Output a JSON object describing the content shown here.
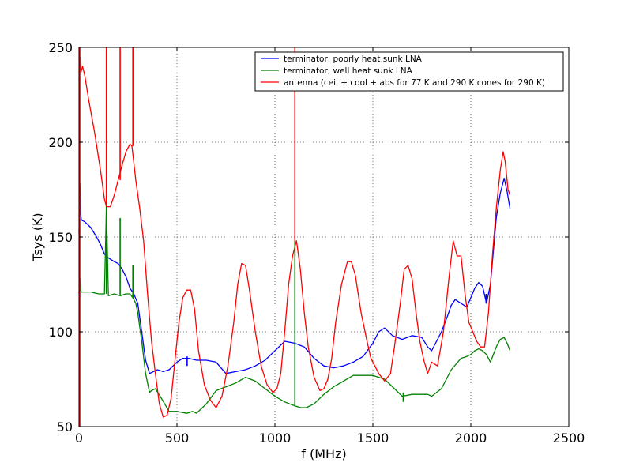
{
  "chart_data": {
    "type": "line",
    "xlabel": "f (MHz)",
    "ylabel": "Tsys (K)",
    "xlim": [
      0,
      2500
    ],
    "ylim": [
      50,
      250
    ],
    "xticks": [
      0,
      500,
      1000,
      1500,
      2000,
      2500
    ],
    "yticks": [
      50,
      100,
      150,
      200,
      250
    ],
    "grid": true,
    "legend_position": "top-right",
    "series": [
      {
        "name": "terminator, poorly heat sunk LNA",
        "color": "#0000ff",
        "x": [
          0,
          5,
          8,
          12,
          30,
          60,
          90,
          110,
          130,
          150,
          180,
          200,
          220,
          240,
          260,
          280,
          300,
          320,
          340,
          360,
          380,
          400,
          430,
          460,
          500,
          530,
          560,
          600,
          650,
          700,
          750,
          800,
          850,
          900,
          950,
          1000,
          1050,
          1100,
          1150,
          1200,
          1250,
          1300,
          1350,
          1400,
          1450,
          1500,
          1530,
          1560,
          1600,
          1650,
          1700,
          1750,
          1780,
          1800,
          1850,
          1880,
          1900,
          1920,
          1950,
          1980,
          2000,
          2020,
          2040,
          2060,
          2080,
          2100,
          2130,
          2150,
          2170,
          2185,
          2200
        ],
        "y": [
          152,
          178,
          162,
          159,
          158,
          155,
          150,
          146,
          141,
          139,
          137,
          136,
          133,
          129,
          123,
          120,
          115,
          100,
          85,
          78,
          79,
          80,
          79,
          80,
          84,
          86,
          86,
          85,
          85,
          84,
          78,
          79,
          80,
          82,
          85,
          90,
          95,
          94,
          92,
          86,
          82,
          81,
          82,
          84,
          87,
          94,
          100,
          102,
          98,
          96,
          98,
          97,
          92,
          90,
          100,
          108,
          114,
          117,
          115,
          113,
          118,
          123,
          126,
          124,
          115,
          125,
          160,
          173,
          181,
          174,
          165
        ]
      },
      {
        "name": "terminator, well heat sunk LNA",
        "color": "#008000",
        "x": [
          0,
          5,
          8,
          12,
          30,
          60,
          100,
          130,
          140,
          150,
          180,
          210,
          240,
          260,
          275,
          290,
          300,
          320,
          340,
          360,
          370,
          390,
          420,
          460,
          500,
          550,
          580,
          600,
          650,
          700,
          750,
          800,
          850,
          900,
          950,
          1000,
          1050,
          1100,
          1130,
          1160,
          1200,
          1250,
          1300,
          1350,
          1400,
          1450,
          1500,
          1530,
          1560,
          1600,
          1650,
          1700,
          1750,
          1780,
          1800,
          1850,
          1900,
          1950,
          1980,
          2000,
          2020,
          2040,
          2060,
          2080,
          2100,
          2130,
          2150,
          2170,
          2185,
          2200
        ],
        "y": [
          120,
          128,
          122,
          121,
          121,
          121,
          120,
          120,
          166,
          119,
          120,
          119,
          120,
          120,
          118,
          115,
          110,
          95,
          78,
          68,
          69,
          70,
          65,
          58,
          58,
          57,
          58,
          57,
          62,
          69,
          71,
          73,
          76,
          74,
          70,
          66,
          63,
          61,
          60,
          60,
          62,
          67,
          71,
          74,
          77,
          77,
          77,
          76,
          75,
          71,
          66,
          67,
          67,
          67,
          66,
          70,
          80,
          86,
          87,
          88,
          90,
          91,
          90,
          88,
          84,
          92,
          96,
          97,
          94,
          90
        ]
      },
      {
        "name": "antenna (ceil + cool + abs for 77 K and 290 K cones for 290 K)",
        "color": "#ff0000",
        "x": [
          0,
          5,
          10,
          18,
          30,
          50,
          80,
          110,
          130,
          140,
          160,
          180,
          200,
          220,
          240,
          260,
          270,
          290,
          310,
          330,
          350,
          370,
          390,
          410,
          430,
          450,
          470,
          490,
          510,
          530,
          550,
          570,
          590,
          610,
          640,
          670,
          700,
          730,
          760,
          790,
          810,
          830,
          850,
          870,
          900,
          930,
          960,
          990,
          1010,
          1030,
          1050,
          1070,
          1090,
          1110,
          1130,
          1150,
          1170,
          1200,
          1230,
          1250,
          1270,
          1290,
          1310,
          1340,
          1370,
          1390,
          1410,
          1440,
          1470,
          1490,
          1510,
          1530,
          1560,
          1590,
          1610,
          1640,
          1660,
          1680,
          1700,
          1720,
          1740,
          1760,
          1780,
          1800,
          1830,
          1860,
          1890,
          1910,
          1930,
          1950,
          1970,
          1990,
          2010,
          2030,
          2050,
          2070,
          2090,
          2110,
          2130,
          2150,
          2165,
          2175,
          2190,
          2200
        ],
        "y": [
          233,
          245,
          237,
          240,
          235,
          222,
          205,
          185,
          170,
          166,
          166,
          172,
          180,
          188,
          195,
          199,
          198,
          180,
          165,
          148,
          120,
          95,
          78,
          62,
          55,
          56,
          65,
          85,
          105,
          118,
          122,
          122,
          112,
          90,
          72,
          64,
          60,
          66,
          82,
          105,
          125,
          136,
          135,
          122,
          100,
          82,
          72,
          68,
          70,
          78,
          100,
          125,
          140,
          148,
          133,
          110,
          92,
          76,
          69,
          70,
          75,
          86,
          105,
          125,
          137,
          137,
          130,
          110,
          95,
          86,
          82,
          78,
          74,
          78,
          92,
          115,
          133,
          135,
          128,
          110,
          95,
          85,
          78,
          84,
          82,
          100,
          130,
          148,
          140,
          140,
          120,
          105,
          100,
          95,
          92,
          92,
          110,
          140,
          165,
          185,
          195,
          190,
          175,
          172
        ]
      }
    ],
    "spikes": [
      {
        "color": "#ff0000",
        "x": 4,
        "from": 50,
        "to": 250
      },
      {
        "color": "#ff0000",
        "x": 140,
        "from": 166,
        "to": 250
      },
      {
        "color": "#ff0000",
        "x": 210,
        "from": 180,
        "to": 250
      },
      {
        "color": "#ff0000",
        "x": 275,
        "from": 198,
        "to": 250
      },
      {
        "color": "#ff0000",
        "x": 1102,
        "from": 140,
        "to": 250
      },
      {
        "color": "#008000",
        "x": 140,
        "from": 120,
        "to": 166
      },
      {
        "color": "#008000",
        "x": 210,
        "from": 119,
        "to": 160
      },
      {
        "color": "#008000",
        "x": 275,
        "from": 118,
        "to": 135
      },
      {
        "color": "#008000",
        "x": 1102,
        "from": 61,
        "to": 148
      },
      {
        "color": "#008000",
        "x": 1655,
        "from": 63,
        "to": 68
      },
      {
        "color": "#0000ff",
        "x": 552,
        "from": 82,
        "to": 87
      },
      {
        "color": "#0000ff",
        "x": 2078,
        "from": 115,
        "to": 120
      }
    ]
  }
}
